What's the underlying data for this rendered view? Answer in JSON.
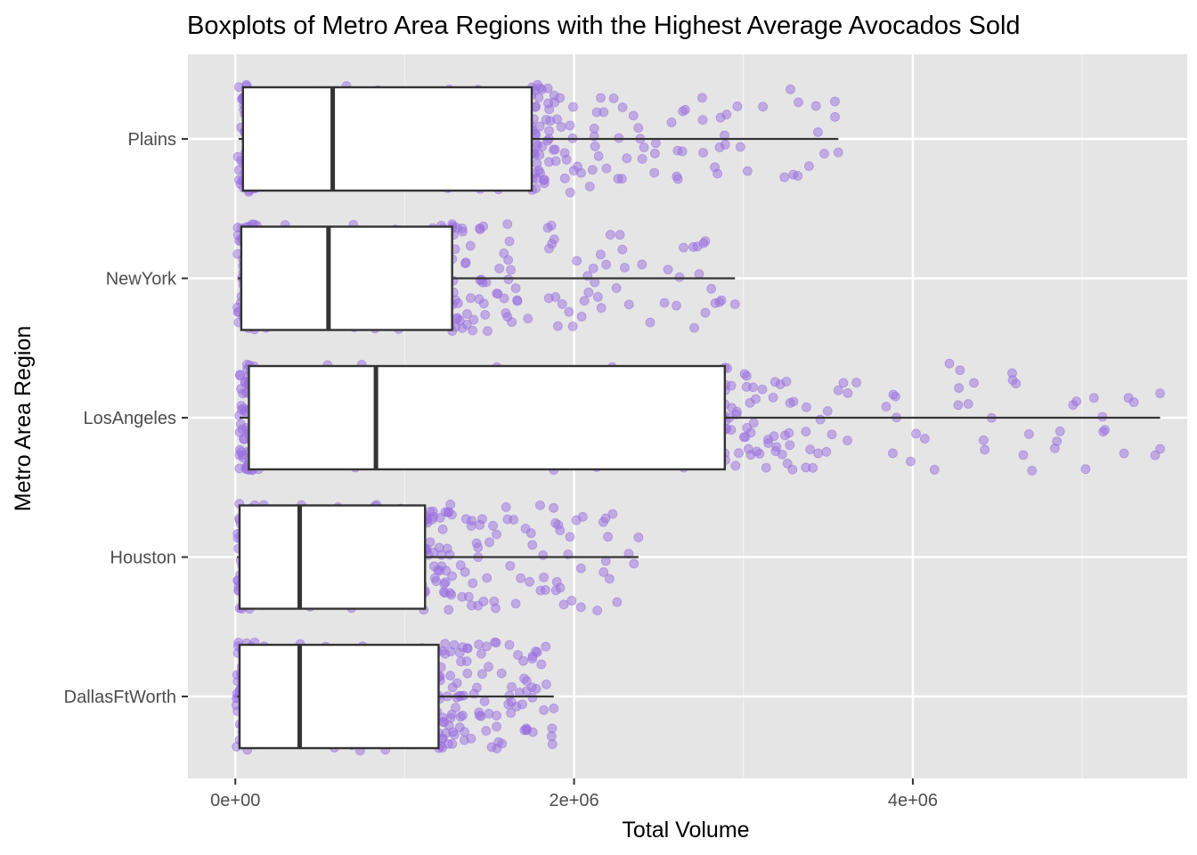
{
  "chart_data": {
    "type": "boxplot",
    "title": "Boxplots of Metro Area Regions with the Highest Average Avocados Sold",
    "xlabel": "Total Volume",
    "ylabel": "Metro Area Region",
    "xlim": [
      -280000,
      5620000
    ],
    "x_ticks": [
      {
        "value": 0,
        "label": "0e+00"
      },
      {
        "value": 2000000,
        "label": "2e+06"
      },
      {
        "value": 4000000,
        "label": "4e+06"
      }
    ],
    "orientation": "horizontal",
    "grid": true,
    "point_color": "#9a6fe0",
    "background_color": "#e5e5e5",
    "categories": [
      "Plains",
      "NewYork",
      "LosAngeles",
      "Houston",
      "DallasFtWorth"
    ],
    "boxes": [
      {
        "name": "Plains",
        "whisker_low": 20000,
        "q1": 45000,
        "median": 575000,
        "q3": 1750000,
        "whisker_high": 3560000,
        "outliers": [],
        "jitter_extent": [
          15000,
          3580000
        ]
      },
      {
        "name": "NewYork",
        "whisker_low": 15000,
        "q1": 35000,
        "median": 550000,
        "q3": 1280000,
        "whisker_high": 2950000,
        "outliers": [],
        "jitter_extent": [
          10000,
          2960000
        ]
      },
      {
        "name": "LosAngeles",
        "whisker_low": 25000,
        "q1": 80000,
        "median": 830000,
        "q3": 2890000,
        "whisker_high": 5460000,
        "outliers": [],
        "jitter_extent": [
          20000,
          5460000
        ]
      },
      {
        "name": "Houston",
        "whisker_low": 10000,
        "q1": 25000,
        "median": 380000,
        "q3": 1120000,
        "whisker_high": 2380000,
        "outliers": [],
        "jitter_extent": [
          5000,
          2380000
        ]
      },
      {
        "name": "DallasFtWorth",
        "whisker_low": 10000,
        "q1": 25000,
        "median": 380000,
        "q3": 1200000,
        "whisker_high": 1880000,
        "outliers": [],
        "jitter_extent": [
          5000,
          1880000
        ]
      }
    ]
  }
}
